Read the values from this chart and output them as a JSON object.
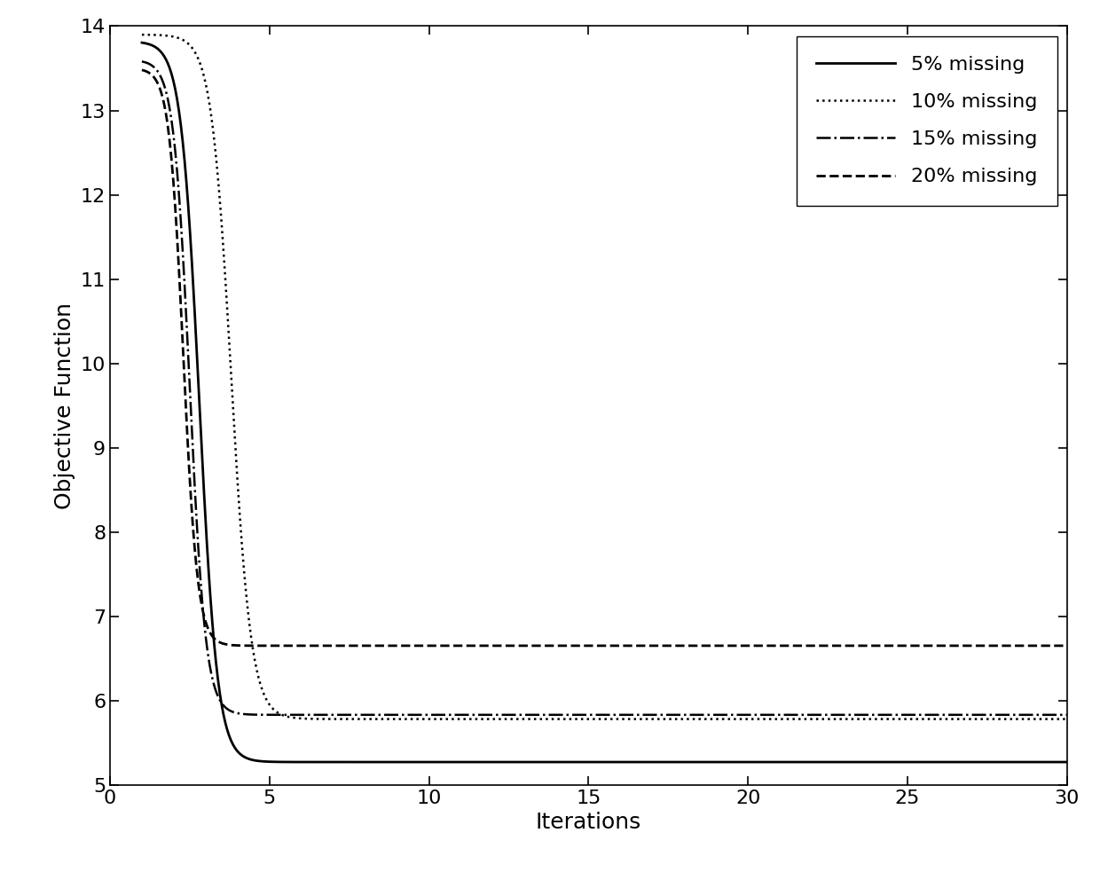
{
  "xlabel": "Iterations",
  "ylabel": "Objective Function",
  "xlim": [
    0,
    30
  ],
  "ylim": [
    5,
    14
  ],
  "yticks": [
    5,
    6,
    7,
    8,
    9,
    10,
    11,
    12,
    13,
    14
  ],
  "xticks": [
    0,
    5,
    10,
    15,
    20,
    25,
    30
  ],
  "curves": [
    {
      "label": "5% missing",
      "linestyle": "solid",
      "linewidth": 2.0,
      "peak_y": 13.82,
      "midpoint": 2.8,
      "k": 3.5,
      "converge_y": 5.27
    },
    {
      "label": "10% missing",
      "linestyle": "dotted",
      "linewidth": 1.8,
      "peak_y": 13.9,
      "midpoint": 3.8,
      "k": 3.2,
      "converge_y": 5.78
    },
    {
      "label": "15% missing",
      "linestyle": "dashdot",
      "linewidth": 1.8,
      "peak_y": 13.6,
      "midpoint": 2.5,
      "k": 4.0,
      "converge_y": 5.83
    },
    {
      "label": "20% missing",
      "linestyle": "dashed",
      "linewidth": 2.0,
      "peak_y": 13.5,
      "midpoint": 2.3,
      "k": 4.5,
      "converge_y": 6.65
    }
  ],
  "background_color": "white",
  "tick_fontsize": 16,
  "label_fontsize": 18,
  "legend_fontsize": 16
}
